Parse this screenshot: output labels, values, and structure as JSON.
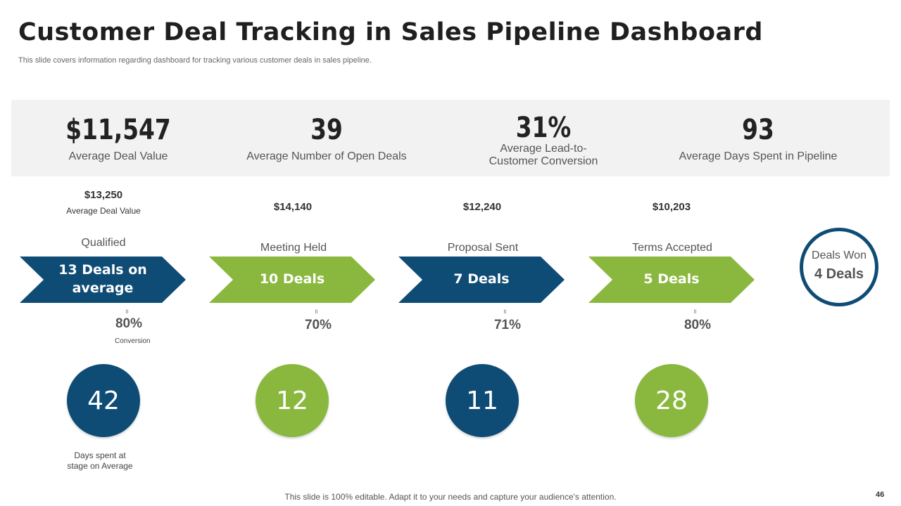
{
  "header": {
    "title": "Customer Deal Tracking in Sales Pipeline Dashboard",
    "subtitle": "This slide covers information regarding dashboard for tracking various customer deals in sales pipeline."
  },
  "kpis": [
    {
      "value": "$11,547",
      "label": "Average Deal Value"
    },
    {
      "value": "39",
      "label": "Average Number of Open Deals"
    },
    {
      "value": "31%",
      "label_line1": "Average Lead-to-",
      "label_line2": "Customer Conversion"
    },
    {
      "value": "93",
      "label": "Average Days Spent in Pipeline"
    }
  ],
  "stages": [
    {
      "price": "$13,250",
      "price_note": "Average  Deal Value",
      "name": "Qualified",
      "deals_line1": "13 Deals on",
      "deals_line2": "average",
      "tick": "॥",
      "conversion": "80%",
      "conversion_note": "Conversion",
      "days": "42",
      "days_note_line1": "Days spent at",
      "days_note_line2": "stage on Average"
    },
    {
      "price": "$14,140",
      "name": "Meeting Held",
      "deals": "10 Deals",
      "tick": "॥",
      "conversion": "70%",
      "days": "12"
    },
    {
      "price": "$12,240",
      "name": "Proposal Sent",
      "deals": "7 Deals",
      "tick": "॥",
      "conversion": "71%",
      "days": "11"
    },
    {
      "price": "$10,203",
      "name": "Terms Accepted",
      "deals": "5 Deals",
      "tick": "॥",
      "conversion": "80%",
      "days": "28"
    }
  ],
  "won": {
    "label": "Deals Won",
    "value": "4 Deals"
  },
  "colors": {
    "blue": "#0f4c75",
    "green": "#8ab83f",
    "band": "#f2f2f2"
  },
  "footer": {
    "text": "This slide is 100% editable. Adapt it to your needs and capture your audience's attention.",
    "page": "46"
  }
}
